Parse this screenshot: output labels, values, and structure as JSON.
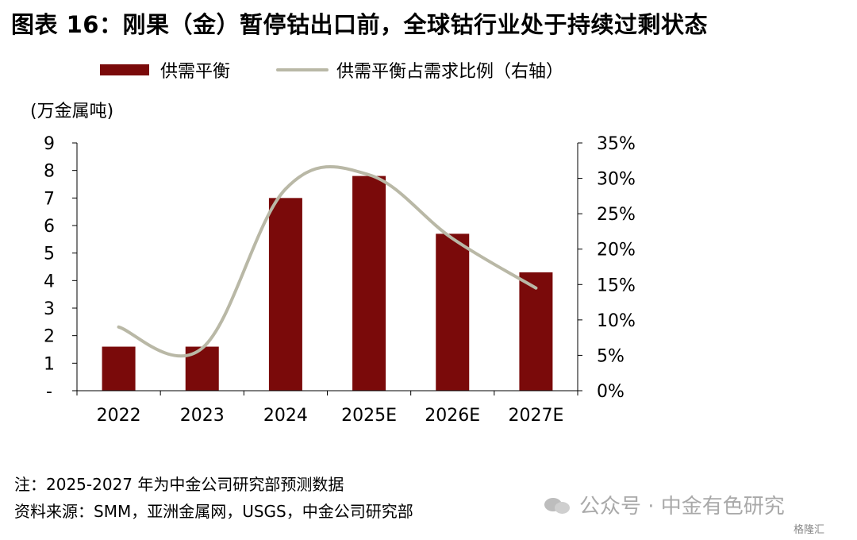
{
  "title": "图表 16：刚果（金）暂停钴出口前，全球钴行业处于持续过剩状态",
  "legend": {
    "bar_label": "供需平衡",
    "line_label": "供需平衡占需求比例（右轴）"
  },
  "unit_label": "(万金属吨)",
  "colors": {
    "bar": "#7a0a0a",
    "line": "#b9b8a6",
    "axis": "#000000"
  },
  "chart_data": {
    "type": "bar",
    "categories": [
      "2022",
      "2023",
      "2024",
      "2025E",
      "2026E",
      "2027E"
    ],
    "series": [
      {
        "name": "供需平衡",
        "type": "bar",
        "axis": "left",
        "values": [
          1.6,
          1.6,
          7.0,
          7.8,
          5.7,
          4.3
        ]
      },
      {
        "name": "供需平衡占需求比例（右轴）",
        "type": "line",
        "axis": "right",
        "values": [
          0.09,
          0.06,
          0.285,
          0.305,
          0.215,
          0.145
        ]
      }
    ],
    "ylim_left": [
      0,
      9
    ],
    "yticks_left": [
      "-",
      "1",
      "2",
      "3",
      "4",
      "5",
      "6",
      "7",
      "8",
      "9"
    ],
    "ylim_right": [
      0,
      0.35
    ],
    "yticks_right": [
      "0%",
      "5%",
      "10%",
      "15%",
      "20%",
      "25%",
      "30%",
      "35%"
    ],
    "ylabel_left": "(万金属吨)",
    "grid": false
  },
  "notes": {
    "note": "注：2025-2027 年为中金公司研究部预测数据",
    "source": "资料来源：SMM，亚洲金属网，USGS，中金公司研究部"
  },
  "watermark": {
    "text": "公众号 · 中金有色研究",
    "icon": "wechat-icon"
  },
  "corner_logo": "格隆汇"
}
